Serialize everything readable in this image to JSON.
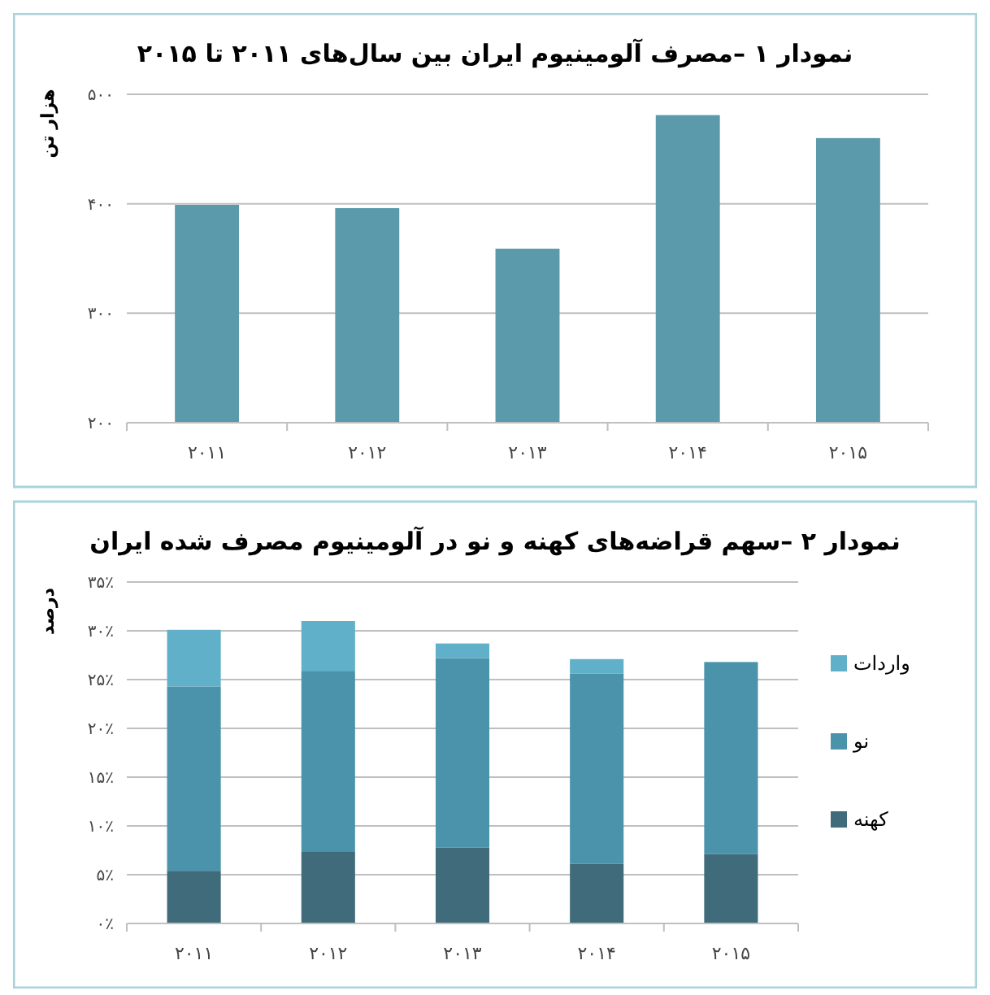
{
  "chart_data": [
    {
      "type": "bar",
      "title": "نمودار ۱ –مصرف آلومینیوم ایران بین سال‌های ۲۰۱۱ تا ۲۰۱۵",
      "ylabel": "هزار تن",
      "categories": [
        "۲۰۱۱",
        "۲۰۱۲",
        "۲۰۱۳",
        "۲۰۱۴",
        "۲۰۱۵"
      ],
      "values": [
        399,
        396,
        359,
        481,
        460
      ],
      "color": "#5b9aab",
      "ylim": [
        200,
        500
      ],
      "yticks": [
        {
          "value": 200,
          "label": "۲۰۰"
        },
        {
          "value": 300,
          "label": "۳۰۰"
        },
        {
          "value": 400,
          "label": "۴۰۰"
        },
        {
          "value": 500,
          "label": "۵۰۰"
        }
      ],
      "grid": "y"
    },
    {
      "type": "bar",
      "title": "نمودار ۲ –سهم قراضه‌های کهنه و نو در آلومینیوم مصرف شده ایران",
      "ylabel": "درصد",
      "categories": [
        "۲۰۱۱",
        "۲۰۱۲",
        "۲۰۱۳",
        "۲۰۱۴",
        "۲۰۱۵"
      ],
      "stacked": true,
      "series": [
        {
          "name": "کهنه",
          "color": "#3f6b7a",
          "values": [
            5.4,
            7.4,
            7.8,
            6.1,
            7.1
          ]
        },
        {
          "name": "نو",
          "color": "#4a93aa",
          "values": [
            18.9,
            18.5,
            19.4,
            19.5,
            19.7
          ]
        },
        {
          "name": "واردات",
          "color": "#5fb0c8",
          "values": [
            5.8,
            5.1,
            1.5,
            1.5,
            0
          ]
        }
      ],
      "ylim": [
        0,
        35
      ],
      "yticks": [
        {
          "value": 0,
          "label": "۰٪"
        },
        {
          "value": 5,
          "label": "۵٪"
        },
        {
          "value": 10,
          "label": "۱۰٪"
        },
        {
          "value": 15,
          "label": "۱۵٪"
        },
        {
          "value": 20,
          "label": "۲۰٪"
        },
        {
          "value": 25,
          "label": "۲۵٪"
        },
        {
          "value": 30,
          "label": "۳۰٪"
        },
        {
          "value": 35,
          "label": "۳۵٪"
        }
      ],
      "grid": "y",
      "legend": "right"
    }
  ]
}
